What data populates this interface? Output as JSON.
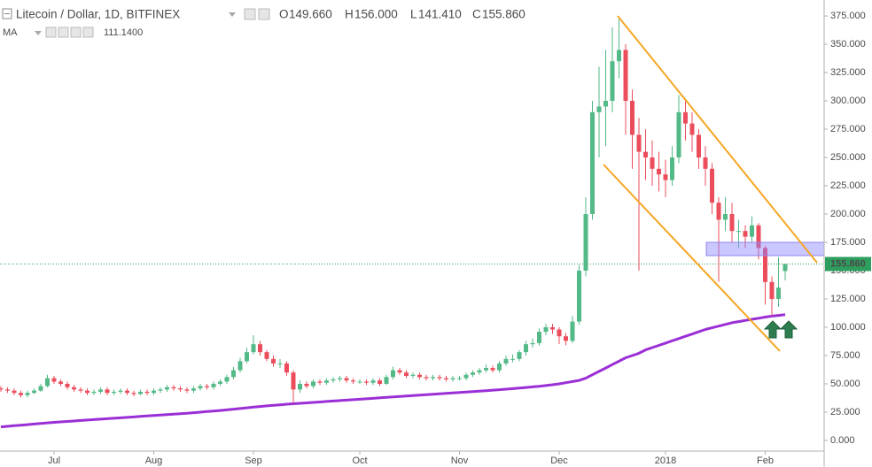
{
  "chart_data": {
    "type": "candlestick",
    "title": "Litecoin / Dollar, 1D, BITFINEX",
    "ohlc_labels": [
      {
        "key": "O",
        "value": "149.660"
      },
      {
        "key": "H",
        "value": "156.000"
      },
      {
        "key": "L",
        "value": "141.410"
      },
      {
        "key": "C",
        "value": "155.860"
      }
    ],
    "price_label": "155.860",
    "up_color": "#53b987",
    "down_color": "#eb4d5c",
    "price_line_color": "#2e9e5e",
    "categories": [
      null,
      null,
      null,
      null,
      null,
      null,
      null,
      null,
      "Jul",
      null,
      null,
      null,
      null,
      null,
      null,
      null,
      null,
      null,
      null,
      null,
      null,
      null,
      null,
      "Aug",
      null,
      null,
      null,
      null,
      null,
      null,
      null,
      null,
      null,
      null,
      null,
      null,
      null,
      null,
      "Sep",
      null,
      null,
      null,
      null,
      null,
      null,
      null,
      null,
      null,
      null,
      null,
      null,
      null,
      null,
      null,
      "Oct",
      null,
      null,
      null,
      null,
      null,
      null,
      null,
      null,
      null,
      null,
      null,
      null,
      null,
      null,
      "Nov",
      null,
      null,
      null,
      null,
      null,
      null,
      null,
      null,
      null,
      null,
      null,
      null,
      null,
      null,
      "Dec",
      null,
      null,
      null,
      null,
      null,
      null,
      null,
      null,
      null,
      null,
      null,
      null,
      null,
      null,
      null,
      "2018",
      null,
      null,
      null,
      null,
      null,
      null,
      null,
      null,
      null,
      null,
      null,
      null,
      null,
      null,
      "Feb",
      null,
      null,
      null
    ],
    "open": [
      46,
      45,
      44,
      42,
      40,
      42,
      44,
      48,
      55,
      52,
      50,
      47,
      45,
      44,
      42,
      43,
      45,
      42,
      43,
      44,
      42,
      41,
      43,
      42,
      44,
      45,
      47,
      46,
      45,
      44,
      46,
      48,
      47,
      50,
      52,
      56,
      62,
      70,
      78,
      85,
      78,
      72,
      68,
      68,
      60,
      45,
      50,
      48,
      52,
      51,
      53,
      54,
      55,
      53,
      52,
      52,
      51,
      53,
      50,
      56,
      62,
      60,
      57,
      58,
      56,
      55,
      56,
      55,
      54,
      55,
      55,
      58,
      60,
      62,
      64,
      62,
      68,
      72,
      72,
      78,
      85,
      86,
      96,
      100,
      98,
      92,
      88,
      105,
      150,
      200,
      290,
      295,
      300,
      335,
      345,
      300,
      270,
      255,
      250,
      240,
      235,
      230,
      250,
      290,
      280,
      270,
      250,
      240,
      210,
      195,
      200,
      185,
      185,
      180,
      190,
      170,
      140,
      125,
      149.66
    ],
    "high": [
      48,
      47,
      46,
      44,
      44,
      46,
      50,
      58,
      57,
      54,
      52,
      49,
      47,
      46,
      45,
      47,
      47,
      45,
      46,
      46,
      44,
      45,
      45,
      46,
      47,
      49,
      49,
      48,
      47,
      48,
      50,
      50,
      52,
      54,
      58,
      65,
      73,
      82,
      93,
      88,
      80,
      75,
      72,
      70,
      62,
      53,
      52,
      54,
      54,
      55,
      56,
      57,
      57,
      55,
      54,
      54,
      55,
      55,
      58,
      65,
      64,
      62,
      60,
      60,
      58,
      58,
      58,
      57,
      57,
      57,
      60,
      62,
      64,
      67,
      66,
      70,
      75,
      76,
      80,
      88,
      90,
      99,
      103,
      103,
      100,
      95,
      110,
      155,
      215,
      300,
      330,
      345,
      365,
      372,
      350,
      310,
      285,
      275,
      265,
      255,
      248,
      260,
      305,
      300,
      290,
      275,
      260,
      245,
      215,
      215,
      210,
      195,
      190,
      198,
      192,
      172,
      145,
      162,
      156
    ],
    "low": [
      43,
      42,
      40,
      38,
      38,
      41,
      43,
      47,
      50,
      48,
      45,
      43,
      42,
      40,
      40,
      41,
      40,
      40,
      41,
      40,
      39,
      40,
      40,
      40,
      42,
      43,
      44,
      43,
      42,
      42,
      44,
      45,
      45,
      48,
      50,
      54,
      60,
      68,
      76,
      75,
      70,
      65,
      64,
      57,
      33,
      42,
      46,
      46,
      49,
      49,
      51,
      52,
      51,
      50,
      50,
      49,
      49,
      48,
      49,
      54,
      58,
      55,
      55,
      54,
      53,
      53,
      53,
      52,
      52,
      53,
      53,
      56,
      58,
      60,
      60,
      60,
      66,
      69,
      70,
      75,
      82,
      84,
      93,
      94,
      85,
      84,
      86,
      102,
      145,
      195,
      250,
      260,
      290,
      320,
      270,
      240,
      150,
      230,
      225,
      220,
      215,
      225,
      245,
      265,
      255,
      240,
      225,
      200,
      140,
      185,
      175,
      170,
      170,
      175,
      160,
      120,
      110,
      118,
      141.41
    ],
    "close": [
      45,
      44,
      42,
      40,
      42,
      44,
      48,
      55,
      52,
      50,
      47,
      45,
      44,
      42,
      43,
      45,
      42,
      43,
      44,
      42,
      41,
      43,
      42,
      44,
      45,
      47,
      46,
      45,
      44,
      46,
      48,
      47,
      50,
      52,
      56,
      62,
      70,
      78,
      85,
      78,
      72,
      68,
      68,
      60,
      45,
      50,
      48,
      52,
      51,
      53,
      54,
      55,
      53,
      52,
      52,
      51,
      53,
      50,
      56,
      62,
      60,
      57,
      58,
      56,
      55,
      56,
      55,
      54,
      55,
      55,
      58,
      60,
      62,
      64,
      62,
      68,
      72,
      72,
      78,
      85,
      86,
      96,
      100,
      98,
      92,
      88,
      105,
      150,
      200,
      290,
      295,
      300,
      335,
      345,
      300,
      270,
      255,
      250,
      240,
      235,
      230,
      250,
      290,
      280,
      270,
      250,
      240,
      210,
      195,
      200,
      185,
      185,
      180,
      190,
      170,
      140,
      125,
      135,
      155.86
    ],
    "ma": {
      "name": "MA",
      "value_label": "111.1400",
      "color": "#9b2fd6",
      "values": [
        12,
        12.5,
        13,
        13.5,
        14,
        14.5,
        15,
        15.5,
        16,
        16.4,
        16.8,
        17.2,
        17.6,
        18,
        18.4,
        18.8,
        19.2,
        19.6,
        20,
        20.4,
        20.8,
        21.2,
        21.6,
        22,
        22.4,
        22.8,
        23.2,
        23.6,
        24,
        24.5,
        25,
        25.5,
        26,
        26.5,
        27,
        27.6,
        28.2,
        28.8,
        29.4,
        30,
        30.5,
        31,
        31.5,
        32,
        32.4,
        32.8,
        33.2,
        33.6,
        34,
        34.4,
        34.8,
        35.2,
        35.6,
        36,
        36.4,
        36.8,
        37.2,
        37.6,
        38,
        38.4,
        38.8,
        39.2,
        39.6,
        40,
        40.4,
        40.8,
        41.2,
        41.6,
        42,
        42.4,
        42.8,
        43.2,
        43.6,
        44,
        44.4,
        44.8,
        45.3,
        45.8,
        46.3,
        46.8,
        47.3,
        47.8,
        48.5,
        49.2,
        50,
        51,
        52,
        53,
        55,
        58,
        61,
        64,
        67,
        70,
        73,
        75,
        77,
        80,
        82,
        84,
        86,
        88,
        90,
        92,
        94,
        96,
        98,
        99.5,
        101,
        102.5,
        104,
        105,
        106,
        107,
        108,
        109,
        109.8,
        110.5,
        111.14
      ]
    },
    "ylim": [
      -9.4,
      389.1
    ],
    "yticks": [
      {
        "value": 0,
        "label": "0.000"
      },
      {
        "value": 25,
        "label": "25.000"
      },
      {
        "value": 50,
        "label": "50.000"
      },
      {
        "value": 75,
        "label": "75.000"
      },
      {
        "value": 100,
        "label": "100.000"
      },
      {
        "value": 125,
        "label": "125.000"
      },
      {
        "value": 150,
        "label": "150.000"
      },
      {
        "value": 175,
        "label": "175.000"
      },
      {
        "value": 200,
        "label": "200.000"
      },
      {
        "value": 225,
        "label": "225.000"
      },
      {
        "value": 250,
        "label": "250.000"
      },
      {
        "value": 275,
        "label": "275.000"
      },
      {
        "value": 300,
        "label": "300.000"
      },
      {
        "value": 325,
        "label": "325.000"
      },
      {
        "value": 350,
        "label": "350.000"
      },
      {
        "value": 375,
        "label": "375.000"
      }
    ],
    "grid": false
  }
}
